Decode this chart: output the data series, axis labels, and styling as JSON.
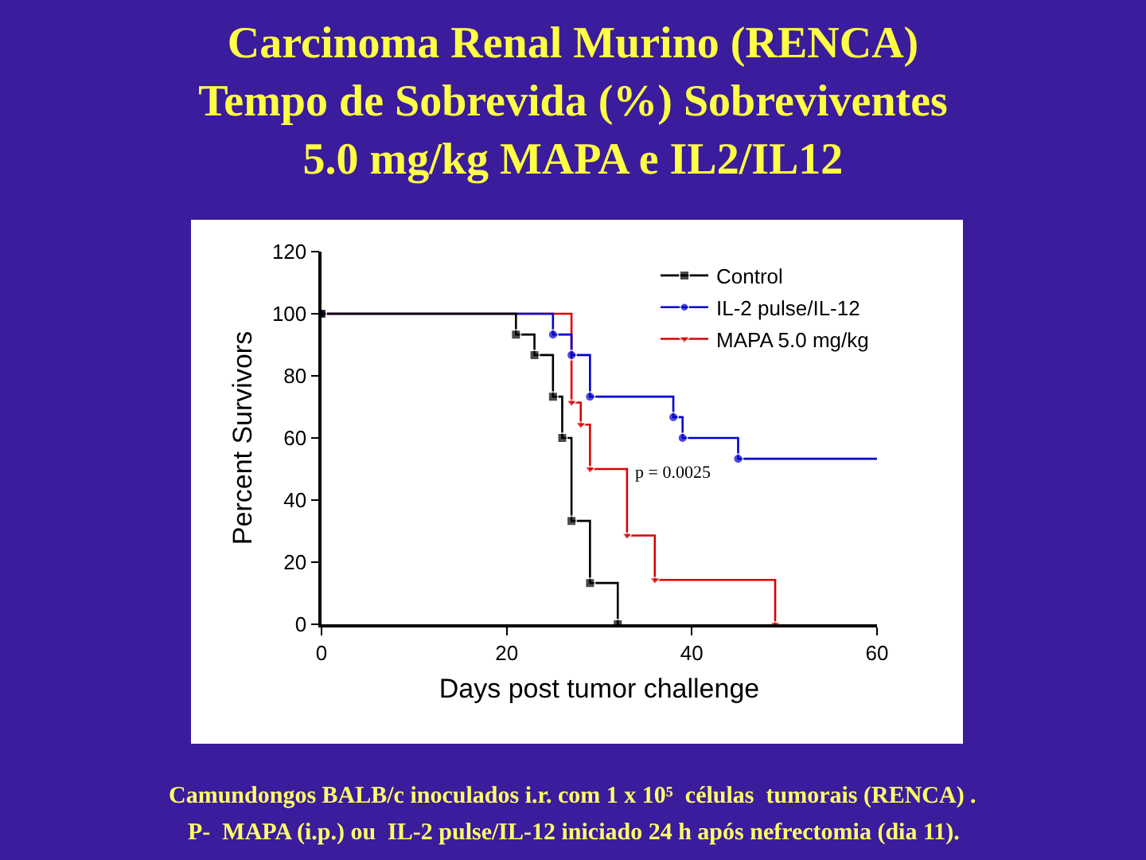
{
  "chart_data": {
    "type": "step",
    "title": "Carcinoma Renal Murino (RENCA)\nTempo de Sobrevida (%) Sobreviventes\n5.0 mg/kg MAPA e IL2/IL12",
    "xlabel": "Days post tumor challenge",
    "ylabel": "Percent Survivors",
    "series": [
      {
        "name": "Control",
        "color": "#000000",
        "marker": "square",
        "x": [
          0,
          21,
          23,
          25,
          26,
          27,
          29,
          32
        ],
        "values": [
          100,
          93.3,
          86.7,
          73.3,
          60,
          33.3,
          13.3,
          0
        ]
      },
      {
        "name": "IL-2 pulse/IL-12",
        "color": "#0000cc",
        "marker": "circle",
        "x": [
          0,
          25,
          27,
          29,
          38,
          39,
          45,
          60
        ],
        "values": [
          100,
          93.3,
          86.7,
          73.3,
          66.7,
          60,
          53.3,
          53.3
        ]
      },
      {
        "name": "MAPA 5.0 mg/kg",
        "color": "#dd0000",
        "marker": "triangle",
        "x": [
          0,
          27,
          28,
          29,
          33,
          36,
          49
        ],
        "values": [
          100,
          71.4,
          64.3,
          50,
          28.6,
          14.3,
          0
        ]
      }
    ],
    "xlim": [
      0,
      60
    ],
    "xticks": [
      0,
      20,
      40,
      60
    ],
    "ylim": [
      0,
      120
    ],
    "yticks": [
      0,
      20,
      40,
      60,
      80,
      100,
      120
    ],
    "grid": false,
    "legend": "top right",
    "annotations": [
      "p = 0.0025",
      "Camundongos BALB/c inoculados i.r. com 1 x 10⁵  células  tumorais (RENCA) .",
      "P-  MAPA (i.p.) ou  IL-2 pulse/IL-12 iniciado 24 h após nefrectomia (dia 11)."
    ]
  }
}
